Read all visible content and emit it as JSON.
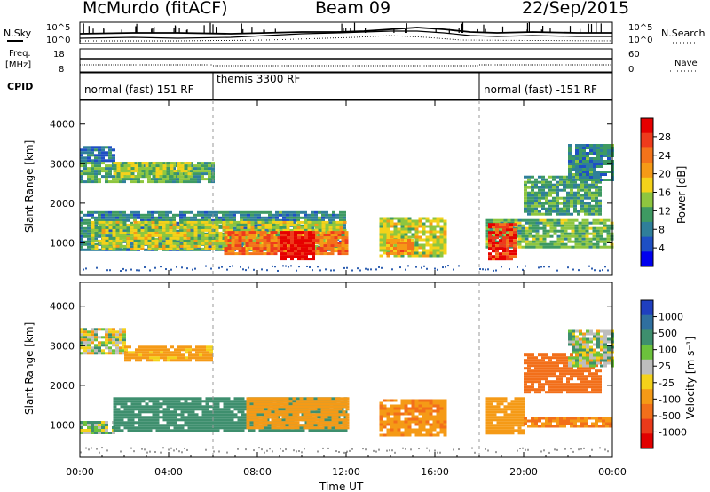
{
  "header": {
    "station": "McMurdo (fitACF)",
    "beam": "Beam 09",
    "date": "22/Sep/2015"
  },
  "strips": {
    "left_top_label": "N.Sky",
    "left_top_ticks": [
      "10^5",
      "10^0"
    ],
    "right_top_label": "N.Search",
    "right_top_ticks": [
      "10^5",
      "10^0"
    ],
    "freq_label_1": "Freq.",
    "freq_label_2": "[MHz]",
    "freq_ticks": [
      "18",
      "8"
    ],
    "nave_label": "Nave",
    "nave_ticks": [
      "60",
      "0"
    ],
    "cpid_label": "CPID"
  },
  "cpid_segments": [
    {
      "label": "normal (fast) 151 RF",
      "start_hour": 0,
      "end_hour": 6
    },
    {
      "label": "themis 3300 RF",
      "start_hour": 6,
      "end_hour": 18
    },
    {
      "label": "normal (fast) -151 RF",
      "start_hour": 18,
      "end_hour": 24
    }
  ],
  "chart_data": [
    {
      "type": "heatmap",
      "quantity": "power",
      "ylabel": "Slant Range [km]",
      "yticks": [
        1000,
        2000,
        3000,
        4000
      ],
      "ylim": [
        180,
        4600
      ],
      "xlim": [
        0,
        24
      ],
      "colorbar_label": "Power [dB]",
      "colorbar_ticks": [
        4,
        8,
        12,
        16,
        20,
        24,
        28
      ],
      "colorbar_colors": [
        "#0000ee",
        "#1e4fc4",
        "#2f7f9a",
        "#3e9a62",
        "#8ec63f",
        "#f4d21a",
        "#f59a16",
        "#f3731b",
        "#ee3b1c",
        "#e60000"
      ],
      "bands": [
        {
          "t0": 0.0,
          "t1": 1.5,
          "r0": 3100,
          "r1": 3450,
          "v": 7
        },
        {
          "t0": 0.0,
          "t1": 6.0,
          "r0": 2550,
          "r1": 3050,
          "v": 12
        },
        {
          "t0": 1.5,
          "t1": 5.0,
          "r0": 2700,
          "r1": 3050,
          "v": 15
        },
        {
          "t0": 0.0,
          "t1": 12.0,
          "r0": 800,
          "r1": 1800,
          "v": 9
        },
        {
          "t0": 0.5,
          "t1": 12.0,
          "r0": 850,
          "r1": 1550,
          "v": 16
        },
        {
          "t0": 6.5,
          "t1": 12.0,
          "r0": 700,
          "r1": 1300,
          "v": 24
        },
        {
          "t0": 9.0,
          "t1": 10.5,
          "r0": 600,
          "r1": 1300,
          "v": 30
        },
        {
          "t0": 13.5,
          "t1": 16.5,
          "r0": 650,
          "r1": 1650,
          "v": 16
        },
        {
          "t0": 13.8,
          "t1": 15.0,
          "r0": 750,
          "r1": 1100,
          "v": 22
        },
        {
          "t0": 18.3,
          "t1": 24.0,
          "r0": 900,
          "r1": 1600,
          "v": 13
        },
        {
          "t0": 18.4,
          "t1": 19.6,
          "r0": 600,
          "r1": 1500,
          "v": 28
        },
        {
          "t0": 20.0,
          "t1": 23.5,
          "r0": 1700,
          "r1": 2700,
          "v": 11
        },
        {
          "t0": 22.0,
          "t1": 24.0,
          "r0": 2600,
          "r1": 3500,
          "v": 9
        }
      ]
    },
    {
      "type": "heatmap",
      "quantity": "velocity",
      "ylabel": "Slant Range [km]",
      "yticks": [
        1000,
        2000,
        3000,
        4000
      ],
      "ylim": [
        180,
        4600
      ],
      "xlim": [
        0,
        24
      ],
      "xticks": [
        "00:00",
        "04:00",
        "08:00",
        "12:00",
        "16:00",
        "20:00",
        "00:00"
      ],
      "xlabel": "Time UT",
      "colorbar_label": "Velocity [m s⁻¹]",
      "colorbar_ticks": [
        "1000",
        "500",
        "100",
        "25",
        "-25",
        "-100",
        "-500",
        "-1000"
      ],
      "colorbar_colors": [
        "#1f3fbf",
        "#2f6f9f",
        "#3e8f6e",
        "#6cc23c",
        "#bdbdbd",
        "#f4d21a",
        "#f59a16",
        "#f26f1a",
        "#ea3a1a",
        "#e10000"
      ],
      "bands": [
        {
          "t0": 0.0,
          "t1": 2.0,
          "r0": 2800,
          "r1": 3450,
          "v": 0
        },
        {
          "t0": 2.0,
          "t1": 6.0,
          "r0": 2600,
          "r1": 3000,
          "v": -120
        },
        {
          "t0": 0.0,
          "t1": 1.5,
          "r0": 800,
          "r1": 1100,
          "v": 30
        },
        {
          "t0": 1.5,
          "t1": 12.0,
          "r0": 850,
          "r1": 1700,
          "v": 180
        },
        {
          "t0": 7.5,
          "t1": 12.0,
          "r0": 900,
          "r1": 1700,
          "v": -200
        },
        {
          "t0": 13.5,
          "t1": 16.5,
          "r0": 750,
          "r1": 1650,
          "v": -250
        },
        {
          "t0": 18.3,
          "t1": 20.0,
          "r0": 800,
          "r1": 1700,
          "v": -200
        },
        {
          "t0": 20.0,
          "t1": 24.0,
          "r0": 950,
          "r1": 1200,
          "v": -300
        },
        {
          "t0": 20.0,
          "t1": 23.5,
          "r0": 1800,
          "r1": 2800,
          "v": -600
        },
        {
          "t0": 22.0,
          "t1": 24.0,
          "r0": 2500,
          "r1": 3400,
          "v": 10
        }
      ]
    }
  ]
}
